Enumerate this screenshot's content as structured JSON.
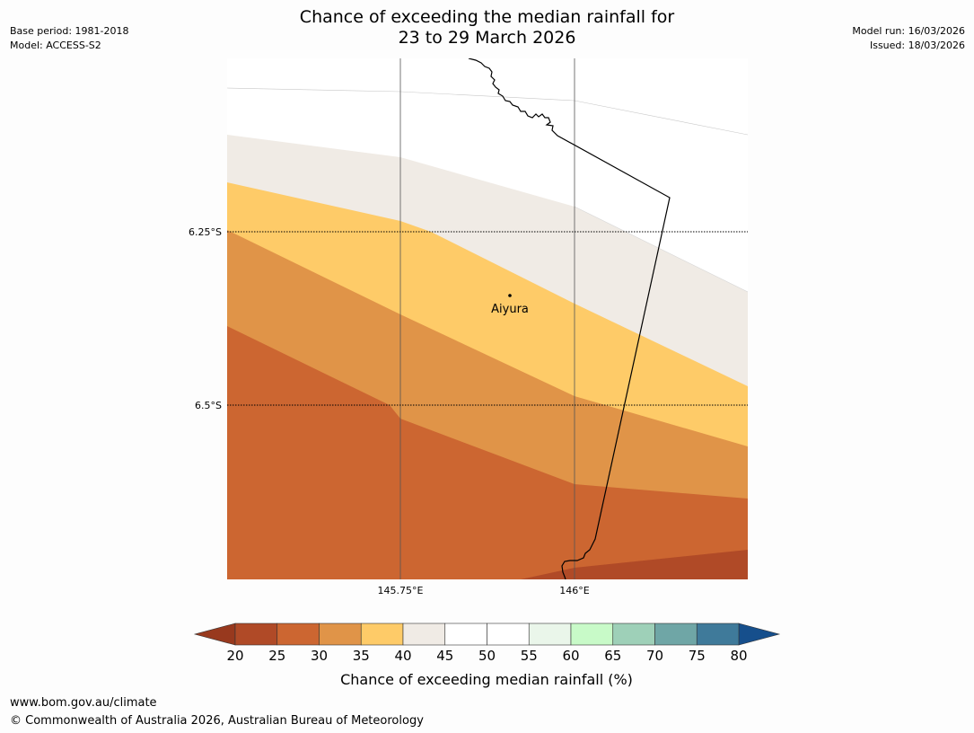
{
  "header": {
    "title_line1": "Chance of exceeding the median rainfall for",
    "title_line2": "23 to 29 March 2026",
    "base_period": "Base period: 1981-2018",
    "model": "Model: ACCESS-S2",
    "model_run": "Model run: 16/03/2026",
    "issued": "Issued: 18/03/2026"
  },
  "map": {
    "lat_labels": [
      "6.25°S",
      "6.5°S"
    ],
    "lon_labels": [
      "145.75°E",
      "146°E"
    ],
    "place": {
      "name": "Aiyura"
    },
    "category_colors": {
      "20-25": "#b04a27",
      "25-30": "#cc6631",
      "30-35": "#e09448",
      "35-40": "#fecb68",
      "40-45": "#f0ebe5",
      "45-50": "#ffffff"
    }
  },
  "colorbar": {
    "ticks": [
      "20",
      "25",
      "30",
      "35",
      "40",
      "45",
      "50",
      "55",
      "60",
      "65",
      "70",
      "75",
      "80"
    ],
    "colors": [
      "#b04a27",
      "#cc6631",
      "#e09448",
      "#fecb68",
      "#f0ebe5",
      "#ffffff",
      "#ffffff",
      "#eaf6ea",
      "#c8fac8",
      "#9ed0b8",
      "#6fa6a6",
      "#3f7a9a"
    ],
    "under_color": "#98391e",
    "over_color": "#164f8c",
    "title": "Chance of exceeding median rainfall (%)"
  },
  "footer": {
    "url": "www.bom.gov.au/climate",
    "copyright": "© Commonwealth of Australia 2026, Australian Bureau of Meteorology"
  }
}
